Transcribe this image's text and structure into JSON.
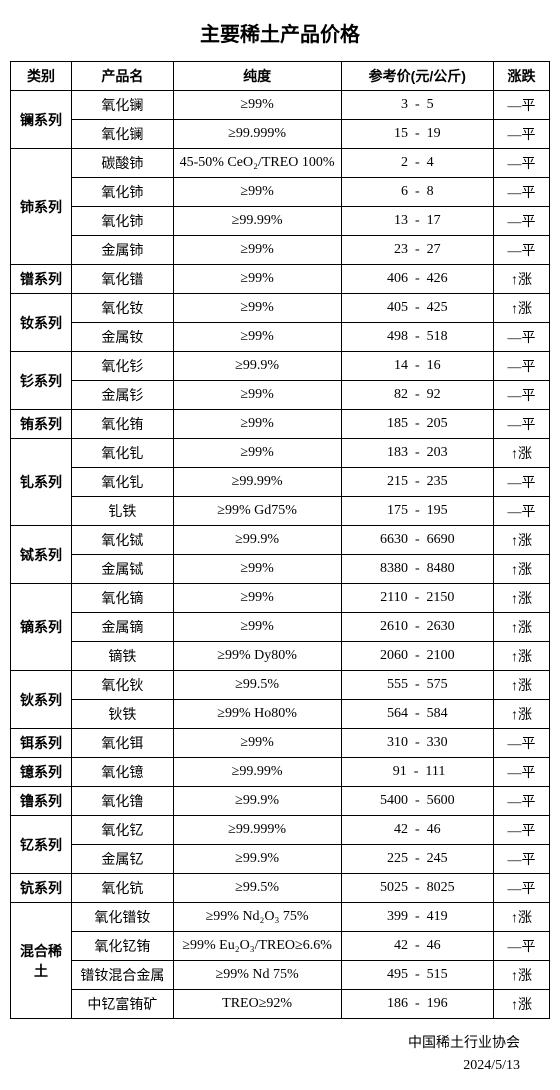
{
  "title": "主要稀土产品价格",
  "headers": {
    "category": "类别",
    "product": "产品名",
    "purity": "纯度",
    "price": "参考价(元/公斤)",
    "trend": "涨跌"
  },
  "groups": [
    {
      "category": "镧系列",
      "rows": [
        {
          "product": "氧化镧",
          "purity": "≥99%",
          "low": 3,
          "high": 5,
          "trend": "—平"
        },
        {
          "product": "氧化镧",
          "purity": "≥99.999%",
          "low": 15,
          "high": 19,
          "trend": "—平"
        }
      ]
    },
    {
      "category": "铈系列",
      "rows": [
        {
          "product": "碳酸铈",
          "purity": "45-50% CeO₂/TREO 100%",
          "low": 2,
          "high": 4,
          "trend": "—平"
        },
        {
          "product": "氧化铈",
          "purity": "≥99%",
          "low": 6,
          "high": 8,
          "trend": "—平"
        },
        {
          "product": "氧化铈",
          "purity": "≥99.99%",
          "low": 13,
          "high": 17,
          "trend": "—平"
        },
        {
          "product": "金属铈",
          "purity": "≥99%",
          "low": 23,
          "high": 27,
          "trend": "—平"
        }
      ]
    },
    {
      "category": "镨系列",
      "rows": [
        {
          "product": "氧化镨",
          "purity": "≥99%",
          "low": 406,
          "high": 426,
          "trend": "↑涨"
        }
      ]
    },
    {
      "category": "钕系列",
      "rows": [
        {
          "product": "氧化钕",
          "purity": "≥99%",
          "low": 405,
          "high": 425,
          "trend": "↑涨"
        },
        {
          "product": "金属钕",
          "purity": "≥99%",
          "low": 498,
          "high": 518,
          "trend": "—平"
        }
      ]
    },
    {
      "category": "钐系列",
      "rows": [
        {
          "product": "氧化钐",
          "purity": "≥99.9%",
          "low": 14,
          "high": 16,
          "trend": "—平"
        },
        {
          "product": "金属钐",
          "purity": "≥99%",
          "low": 82,
          "high": 92,
          "trend": "—平"
        }
      ]
    },
    {
      "category": "铕系列",
      "rows": [
        {
          "product": "氧化铕",
          "purity": "≥99%",
          "low": 185,
          "high": 205,
          "trend": "—平"
        }
      ]
    },
    {
      "category": "钆系列",
      "rows": [
        {
          "product": "氧化钆",
          "purity": "≥99%",
          "low": 183,
          "high": 203,
          "trend": "↑涨"
        },
        {
          "product": "氧化钆",
          "purity": "≥99.99%",
          "low": 215,
          "high": 235,
          "trend": "—平"
        },
        {
          "product": "钆铁",
          "purity": "≥99% Gd75%",
          "low": 175,
          "high": 195,
          "trend": "—平"
        }
      ]
    },
    {
      "category": "铽系列",
      "rows": [
        {
          "product": "氧化铽",
          "purity": "≥99.9%",
          "low": 6630,
          "high": 6690,
          "trend": "↑涨"
        },
        {
          "product": "金属铽",
          "purity": "≥99%",
          "low": 8380,
          "high": 8480,
          "trend": "↑涨"
        }
      ]
    },
    {
      "category": "镝系列",
      "rows": [
        {
          "product": "氧化镝",
          "purity": "≥99%",
          "low": 2110,
          "high": 2150,
          "trend": "↑涨"
        },
        {
          "product": "金属镝",
          "purity": "≥99%",
          "low": 2610,
          "high": 2630,
          "trend": "↑涨"
        },
        {
          "product": "镝铁",
          "purity": "≥99% Dy80%",
          "low": 2060,
          "high": 2100,
          "trend": "↑涨"
        }
      ]
    },
    {
      "category": "钬系列",
      "rows": [
        {
          "product": "氧化钬",
          "purity": "≥99.5%",
          "low": 555,
          "high": 575,
          "trend": "↑涨"
        },
        {
          "product": "钬铁",
          "purity": "≥99% Ho80%",
          "low": 564,
          "high": 584,
          "trend": "↑涨"
        }
      ]
    },
    {
      "category": "铒系列",
      "rows": [
        {
          "product": "氧化铒",
          "purity": "≥99%",
          "low": 310,
          "high": 330,
          "trend": "—平"
        }
      ]
    },
    {
      "category": "镱系列",
      "rows": [
        {
          "product": "氧化镱",
          "purity": "≥99.99%",
          "low": 91,
          "high": 111,
          "trend": "—平"
        }
      ]
    },
    {
      "category": "镥系列",
      "rows": [
        {
          "product": "氧化镥",
          "purity": "≥99.9%",
          "low": 5400,
          "high": 5600,
          "trend": "—平"
        }
      ]
    },
    {
      "category": "钇系列",
      "rows": [
        {
          "product": "氧化钇",
          "purity": "≥99.999%",
          "low": 42,
          "high": 46,
          "trend": "—平"
        },
        {
          "product": "金属钇",
          "purity": "≥99.9%",
          "low": 225,
          "high": 245,
          "trend": "—平"
        }
      ]
    },
    {
      "category": "钪系列",
      "rows": [
        {
          "product": "氧化钪",
          "purity": "≥99.5%",
          "low": 5025,
          "high": 8025,
          "trend": "—平"
        }
      ]
    },
    {
      "category": "混合稀土",
      "rows": [
        {
          "product": "氧化镨钕",
          "purity": "≥99%  Nd₂O₃  75%",
          "low": 399,
          "high": 419,
          "trend": "↑涨"
        },
        {
          "product": "氧化钇铕",
          "purity": "≥99% Eu₂O₃/TREO≥6.6%",
          "low": 42,
          "high": 46,
          "trend": "—平"
        },
        {
          "product": "镨钕混合金属",
          "purity": "≥99% Nd 75%",
          "low": 495,
          "high": 515,
          "trend": "↑涨"
        },
        {
          "product": "中钇富铕矿",
          "purity": "TREO≥92%",
          "low": 186,
          "high": 196,
          "trend": "↑涨"
        }
      ]
    }
  ],
  "footer": {
    "org": "中国稀土行业协会",
    "date": "2024/5/13"
  },
  "style": {
    "price_pad_width": 5
  }
}
